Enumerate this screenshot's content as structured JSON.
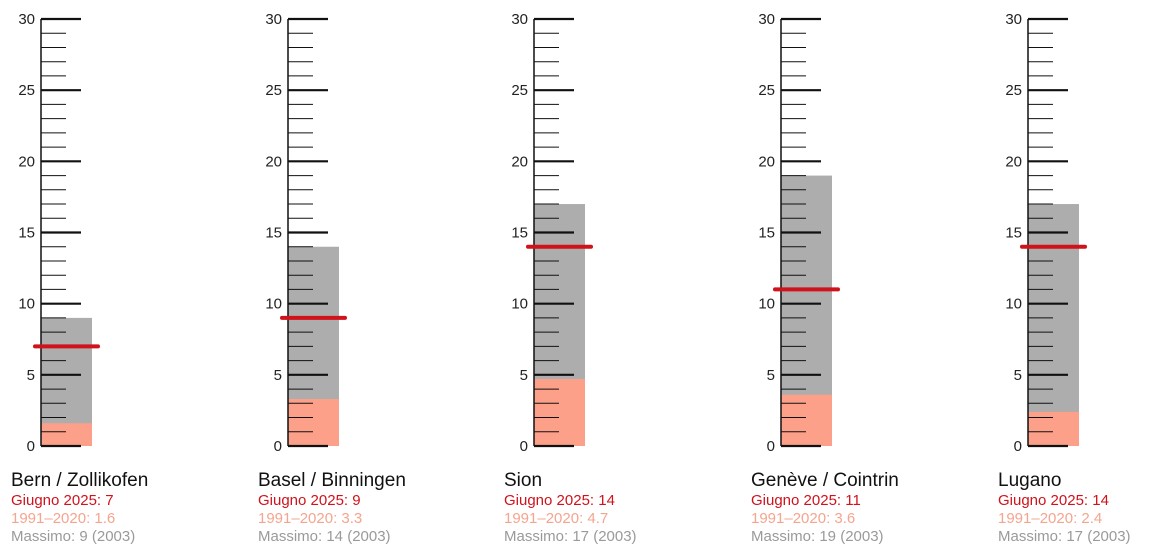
{
  "colors": {
    "current": "#d0121b",
    "normal": "#fca08a",
    "record": "#a9a9a9",
    "axis": "#111111"
  },
  "chart_data": {
    "type": "bar",
    "ylim": [
      0,
      30
    ],
    "yticks": [
      0,
      5,
      10,
      15,
      20,
      25,
      30
    ],
    "ytick_labels": [
      "0",
      "5",
      "10",
      "15",
      "20",
      "25",
      "30"
    ],
    "minor_tick_step": 1,
    "stations": [
      {
        "name": "Bern / Zollikofen",
        "current": 7,
        "normal": 1.6,
        "record": 9,
        "current_label": "Giugno 2025: 7",
        "normal_label": "1991–2020: 1.6",
        "record_label": "Massimo: 9 (2003)"
      },
      {
        "name": "Basel / Binningen",
        "current": 9,
        "normal": 3.3,
        "record": 14,
        "current_label": "Giugno 2025: 9",
        "normal_label": "1991–2020: 3.3",
        "record_label": "Massimo: 14 (2003)"
      },
      {
        "name": "Sion",
        "current": 14,
        "normal": 4.7,
        "record": 17,
        "current_label": "Giugno 2025: 14",
        "normal_label": "1991–2020: 4.7",
        "record_label": "Massimo: 17 (2003)"
      },
      {
        "name": "Genève / Cointrin",
        "current": 11,
        "normal": 3.6,
        "record": 19,
        "current_label": "Giugno 2025: 11",
        "normal_label": "1991–2020: 3.6",
        "record_label": "Massimo: 19 (2003)"
      },
      {
        "name": "Lugano",
        "current": 14,
        "normal": 2.4,
        "record": 17,
        "current_label": "Giugno 2025: 14",
        "normal_label": "1991–2020: 2.4",
        "record_label": "Massimo: 17 (2003)"
      }
    ]
  }
}
